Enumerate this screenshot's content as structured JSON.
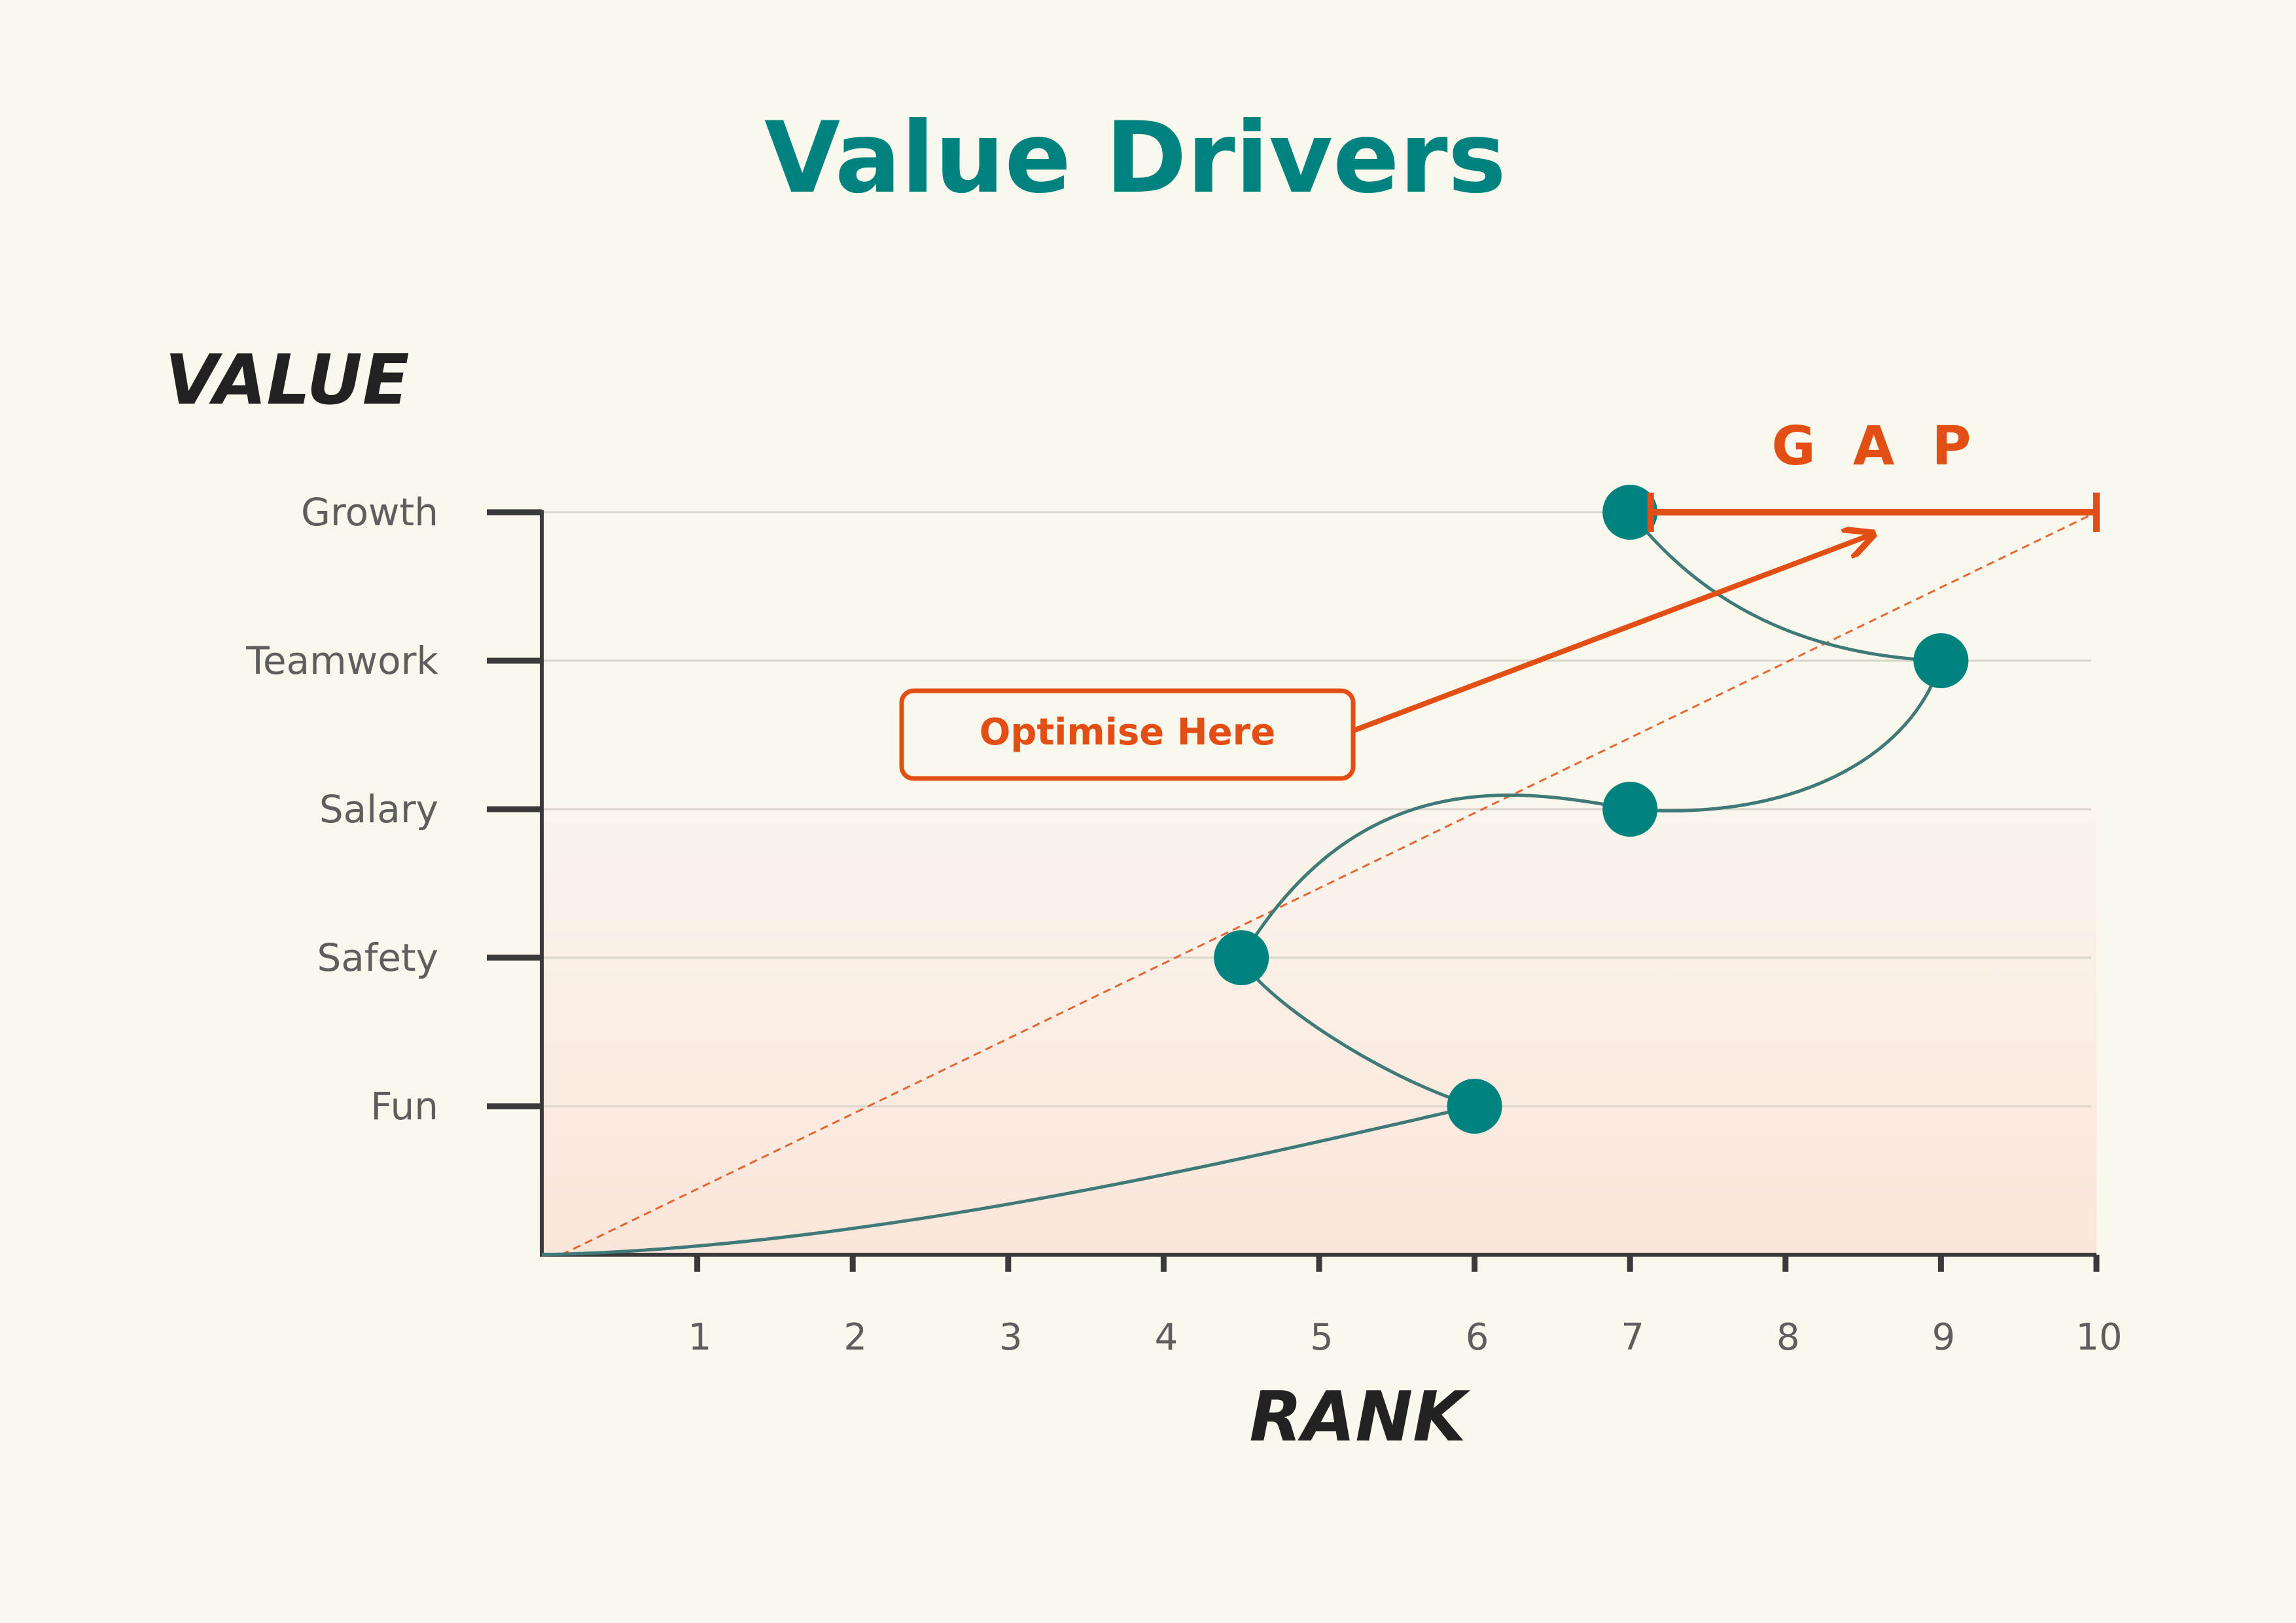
{
  "colors": {
    "background": "#faf7ec",
    "teal": "#00837f",
    "curve": "#3f7a78",
    "orange": "#e24e14",
    "axis": "#3a3a3a",
    "label_gray": "#5e5e5e",
    "grid": "#d8d6cc",
    "shade_top": "#f9f5ec",
    "shade_bottom": "#fbe5da"
  },
  "chart_data": {
    "type": "line",
    "title": "Value Drivers",
    "xlabel": "RANK",
    "ylabel": "VALUE",
    "x_ticks": [
      "1",
      "2",
      "3",
      "4",
      "5",
      "6",
      "7",
      "8",
      "9",
      "10"
    ],
    "xlim": [
      0,
      10
    ],
    "categories": [
      "Fun",
      "Safety",
      "Salary",
      "Teamwork",
      "Growth"
    ],
    "grid": "horizontal",
    "points": [
      {
        "label": "Fun",
        "x": 6,
        "y": "Fun"
      },
      {
        "label": "Safety",
        "x": 4.5,
        "y": "Safety"
      },
      {
        "label": "Salary",
        "x": 7,
        "y": "Salary"
      },
      {
        "label": "Teamwork",
        "x": 9,
        "y": "Teamwork"
      },
      {
        "label": "Growth",
        "x": 7,
        "y": "Growth"
      }
    ],
    "reference_line": {
      "from": [
        0,
        0
      ],
      "to": [
        10,
        "Growth"
      ],
      "style": "dashed"
    },
    "gap": {
      "label": "G  A  P",
      "from_x": 7.2,
      "to_x": 10,
      "y": "Growth"
    },
    "annotation": {
      "text": "Optimise Here"
    }
  }
}
